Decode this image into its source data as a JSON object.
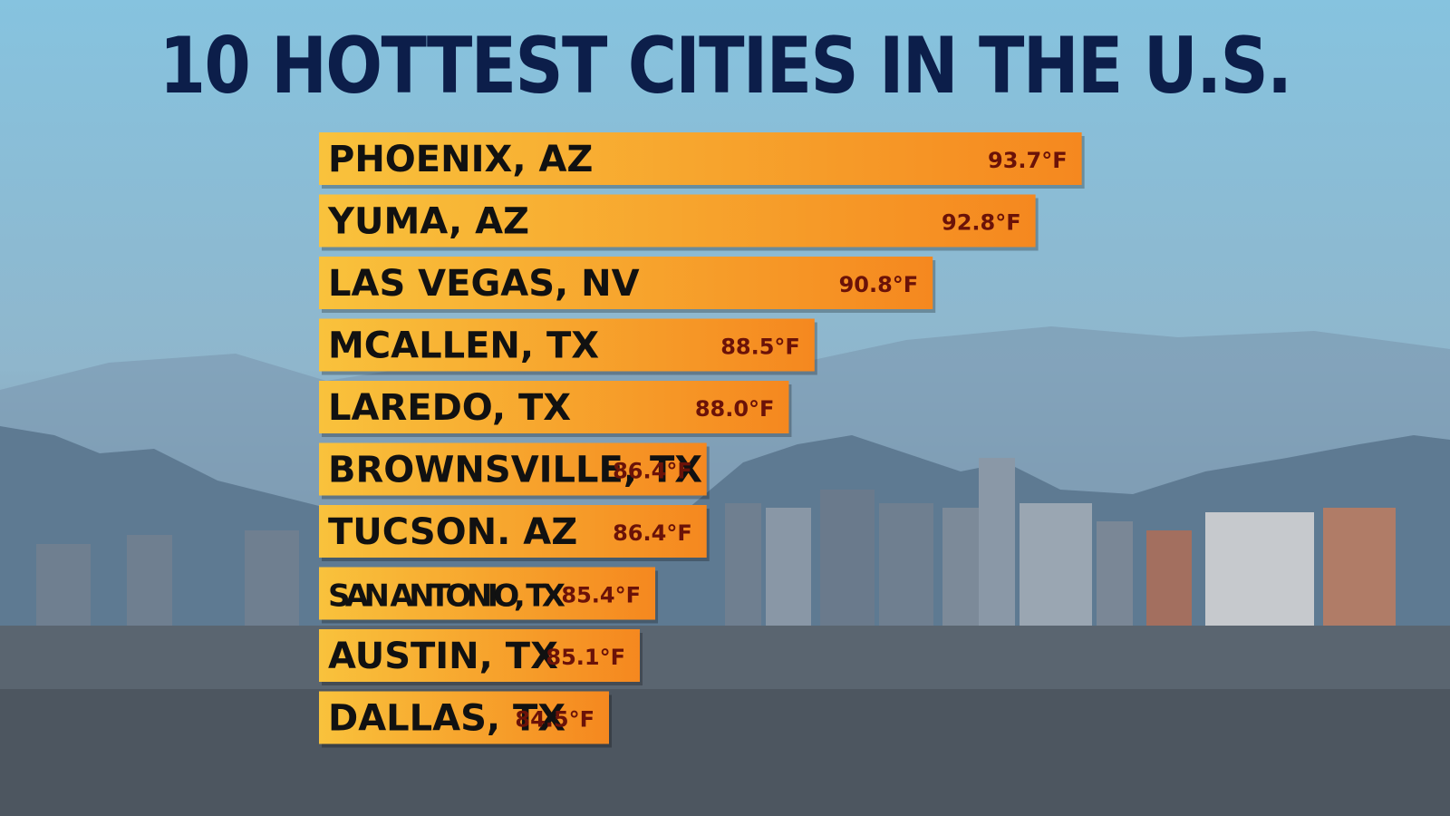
{
  "chart_data": {
    "type": "bar",
    "orientation": "horizontal",
    "title": "10 HOTTEST CITIES IN THE U.S.",
    "categories": [
      "PHOENIX, AZ",
      "YUMA, AZ",
      "LAS VEGAS, NV",
      "MCALLEN, TX",
      "LAREDO, TX",
      "BROWNSVILLE, TX",
      "TUCSON. AZ",
      "SAN ANTONIO, TX",
      "AUSTIN, TX",
      "DALLAS, TX"
    ],
    "values": [
      93.7,
      92.8,
      90.8,
      88.5,
      88.0,
      86.4,
      86.4,
      85.4,
      85.1,
      84.5
    ],
    "value_labels": [
      "93.7°F",
      "92.8°F",
      "90.8°F",
      "88.5°F",
      "88.0°F",
      "86.4°F",
      "86.4°F",
      "85.4°F",
      "85.1°F",
      "84.5°F"
    ],
    "unit": "°F",
    "grid": false,
    "legend": "none",
    "colors": {
      "bar_start": "#f9c23c",
      "bar_end": "#f5881f",
      "title": "#0c1e4a",
      "value_text": "#6b1208"
    }
  }
}
